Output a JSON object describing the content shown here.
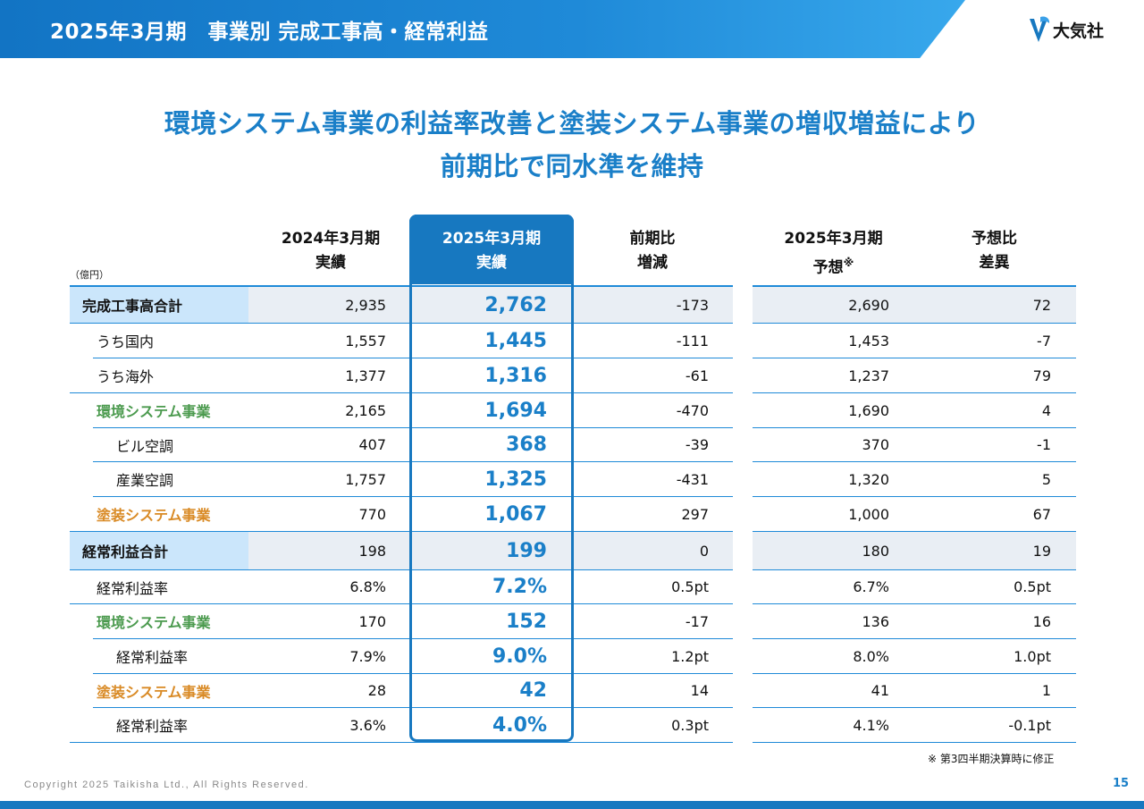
{
  "header": {
    "title": "2025年3月期　事業別 完成工事高・経常利益"
  },
  "logo": {
    "text": "大気社"
  },
  "headline": {
    "line1": "環境システム事業の利益率改善と塗装システム事業の増収増益により",
    "line2": "前期比で同水準を維持"
  },
  "unit": "（億円）",
  "columns": {
    "c1": {
      "line1": "2024年3月期",
      "line2": "実績"
    },
    "c2": {
      "line1": "2025年3月期",
      "line2": "実績"
    },
    "c3": {
      "line1": "前期比",
      "line2": "増減"
    },
    "c4": {
      "line1": "2025年3月期",
      "line2": "予想",
      "mark": "※"
    },
    "c5": {
      "line1": "予想比",
      "line2": "差異"
    }
  },
  "rows": [
    {
      "label": "完成工事高合計",
      "v1": "2,935",
      "v2": "2,762",
      "v3": "-173",
      "v4": "2,690",
      "v5": "72"
    },
    {
      "label": "うち国内",
      "v1": "1,557",
      "v2": "1,445",
      "v3": "-111",
      "v4": "1,453",
      "v5": "-7"
    },
    {
      "label": "うち海外",
      "v1": "1,377",
      "v2": "1,316",
      "v3": "-61",
      "v4": "1,237",
      "v5": "79"
    },
    {
      "label": "環境システム事業",
      "v1": "2,165",
      "v2": "1,694",
      "v3": "-470",
      "v4": "1,690",
      "v5": "4"
    },
    {
      "label": "ビル空調",
      "v1": "407",
      "v2": "368",
      "v3": "-39",
      "v4": "370",
      "v5": "-1"
    },
    {
      "label": "産業空調",
      "v1": "1,757",
      "v2": "1,325",
      "v3": "-431",
      "v4": "1,320",
      "v5": "5"
    },
    {
      "label": "塗装システム事業",
      "v1": "770",
      "v2": "1,067",
      "v3": "297",
      "v4": "1,000",
      "v5": "67"
    },
    {
      "label": "経常利益合計",
      "v1": "198",
      "v2": "199",
      "v3": "0",
      "v4": "180",
      "v5": "19"
    },
    {
      "label": "経常利益率",
      "v1": "6.8%",
      "v2": "7.2%",
      "v3": "0.5pt",
      "v4": "6.7%",
      "v5": "0.5pt"
    },
    {
      "label": "環境システム事業",
      "v1": "170",
      "v2": "152",
      "v3": "-17",
      "v4": "136",
      "v5": "16"
    },
    {
      "label": "経常利益率",
      "v1": "7.9%",
      "v2": "9.0%",
      "v3": "1.2pt",
      "v4": "8.0%",
      "v5": "1.0pt"
    },
    {
      "label": "塗装システム事業",
      "v1": "28",
      "v2": "42",
      "v3": "14",
      "v4": "41",
      "v5": "1"
    },
    {
      "label": "経常利益率",
      "v1": "3.6%",
      "v2": "4.0%",
      "v3": "0.3pt",
      "v4": "4.1%",
      "v5": "-0.1pt"
    }
  ],
  "note": "※ 第3四半期決算時に修正",
  "footer": {
    "copyright": "Copyright  2025 Taikisha Ltd., All Rights Reserved.",
    "page": "15"
  },
  "colors": {
    "brand_blue": "#1778c0",
    "headline_blue": "#1a7fc8",
    "env_green": "#4b9a4e",
    "paint_orange": "#d98a25"
  }
}
